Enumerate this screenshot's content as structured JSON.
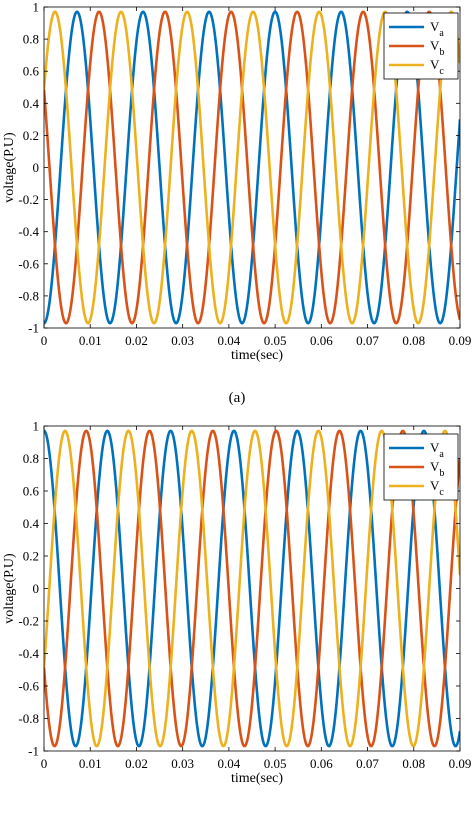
{
  "figure": {
    "panel_captions": [
      "(a)",
      ""
    ]
  },
  "chart_data": [
    {
      "type": "line",
      "xlabel": "time(sec)",
      "ylabel": "voltage(P.U)",
      "xlim": [
        0,
        0.09
      ],
      "ylim": [
        -1,
        1
      ],
      "xticks": [
        0,
        0.01,
        0.02,
        0.03,
        0.04,
        0.05,
        0.06,
        0.07,
        0.08,
        0.09
      ],
      "xtick_labels": [
        "0",
        "0.01",
        "0.02",
        "0.03",
        "0.04",
        "0.05",
        "0.06",
        "0.07",
        "0.08",
        "0.09"
      ],
      "yticks": [
        -1,
        -0.8,
        -0.6,
        -0.4,
        -0.2,
        0,
        0.2,
        0.4,
        0.6,
        0.8,
        1
      ],
      "ytick_labels": [
        "-1",
        "-0.8",
        "-0.6",
        "-0.4",
        "-0.2",
        "0",
        "0.2",
        "0.4",
        "0.6",
        "0.8",
        "1"
      ],
      "grid": false,
      "legend": "top-right",
      "frequency_hz": 70,
      "amplitude": 0.97,
      "series": [
        {
          "name": "V",
          "subscript": "a",
          "color": "#0072BD",
          "phase_deg": -90
        },
        {
          "name": "V",
          "subscript": "b",
          "color": "#D95319",
          "phase_deg": 150
        },
        {
          "name": "V",
          "subscript": "c",
          "color": "#EDB120",
          "phase_deg": 30
        }
      ]
    },
    {
      "type": "line",
      "xlabel": "time(sec)",
      "ylabel": "voltage(P.U)",
      "xlim": [
        0,
        0.09
      ],
      "ylim": [
        -1,
        1
      ],
      "xticks": [
        0,
        0.01,
        0.02,
        0.03,
        0.04,
        0.05,
        0.06,
        0.07,
        0.08,
        0.09
      ],
      "xtick_labels": [
        "0",
        "0.01",
        "0.02",
        "0.03",
        "0.04",
        "0.05",
        "0.06",
        "0.07",
        "0.08",
        "0.09"
      ],
      "yticks": [
        -1,
        -0.8,
        -0.6,
        -0.4,
        -0.2,
        0,
        0.2,
        0.4,
        0.6,
        0.8,
        1
      ],
      "ytick_labels": [
        "-1",
        "-0.8",
        "-0.6",
        "-0.4",
        "-0.2",
        "0",
        "0.2",
        "0.4",
        "0.6",
        "0.8",
        "1"
      ],
      "grid": false,
      "legend": "top-right",
      "frequency_hz": 73,
      "amplitude": 0.97,
      "series": [
        {
          "name": "V",
          "subscript": "a",
          "color": "#0072BD",
          "phase_deg": 90
        },
        {
          "name": "V",
          "subscript": "b",
          "color": "#D95319",
          "phase_deg": -150
        },
        {
          "name": "V",
          "subscript": "c",
          "color": "#EDB120",
          "phase_deg": -30
        }
      ]
    }
  ]
}
